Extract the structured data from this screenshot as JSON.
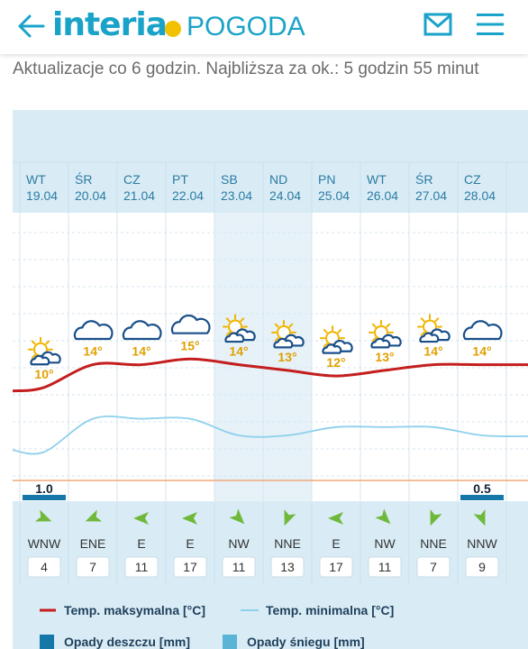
{
  "header": {
    "logo_primary": "interia",
    "logo_secondary": "POGODA"
  },
  "update_text": "Aktualizacje co 6 godzin. Najbliższa za ok.: 5 godzin 55 minut",
  "days": [
    {
      "dow": "WT",
      "date": "19.04",
      "icon": "sun-behind-cloud-icon",
      "max": 10,
      "min": 3,
      "max_label": "10°",
      "rain": 1.0,
      "rain_label": "1.0",
      "wind_dir": "WNW",
      "wind_speed": "4",
      "wind_deg": 292
    },
    {
      "dow": "ŚR",
      "date": "20.04",
      "icon": "cloud-icon",
      "max": 14,
      "min": 7,
      "max_label": "14°",
      "rain": 0,
      "rain_label": "",
      "wind_dir": "ENE",
      "wind_speed": "7",
      "wind_deg": 68
    },
    {
      "dow": "CZ",
      "date": "21.04",
      "icon": "cloud-icon",
      "max": 14,
      "min": 7,
      "max_label": "14°",
      "rain": 0,
      "rain_label": "",
      "wind_dir": "E",
      "wind_speed": "11",
      "wind_deg": 90
    },
    {
      "dow": "PT",
      "date": "22.04",
      "icon": "cloud-icon",
      "max": 15,
      "min": 7,
      "max_label": "15°",
      "rain": 0,
      "rain_label": "",
      "wind_dir": "E",
      "wind_speed": "17",
      "wind_deg": 90
    },
    {
      "dow": "SB",
      "date": "23.04",
      "icon": "sun-behind-cloud-icon",
      "max": 14,
      "min": 5,
      "max_label": "14°",
      "rain": 0,
      "rain_label": "",
      "wind_dir": "NW",
      "wind_speed": "11",
      "wind_deg": 315
    },
    {
      "dow": "ND",
      "date": "24.04",
      "icon": "sun-behind-cloud-icon",
      "max": 13,
      "min": 5,
      "max_label": "13°",
      "rain": 0,
      "rain_label": "",
      "wind_dir": "NNE",
      "wind_speed": "13",
      "wind_deg": 22
    },
    {
      "dow": "PN",
      "date": "25.04",
      "icon": "sun-behind-cloud-icon",
      "max": 12,
      "min": 6,
      "max_label": "12°",
      "rain": 0,
      "rain_label": "",
      "wind_dir": "E",
      "wind_speed": "17",
      "wind_deg": 90
    },
    {
      "dow": "WT",
      "date": "26.04",
      "icon": "sun-behind-cloud-icon",
      "max": 13,
      "min": 6,
      "max_label": "13°",
      "rain": 0,
      "rain_label": "",
      "wind_dir": "NW",
      "wind_speed": "11",
      "wind_deg": 315
    },
    {
      "dow": "ŚR",
      "date": "27.04",
      "icon": "sun-behind-cloud-icon",
      "max": 14,
      "min": 6,
      "max_label": "14°",
      "rain": 0,
      "rain_label": "",
      "wind_dir": "NNE",
      "wind_speed": "7",
      "wind_deg": 22
    },
    {
      "dow": "CZ",
      "date": "28.04",
      "icon": "cloud-icon",
      "max": 14,
      "min": 5,
      "max_label": "14°",
      "rain": 0.5,
      "rain_label": "0.5",
      "wind_dir": "NNW",
      "wind_speed": "9",
      "wind_deg": 338
    }
  ],
  "weekend_columns": [
    4,
    5
  ],
  "legend": {
    "max_label": "Temp. maksymalna [°C]",
    "min_label": "Temp. minimalna [°C]",
    "rain_label": "Opady deszczu [mm]",
    "snow_label": "Opady śniegu [mm]"
  },
  "colors": {
    "brand": "#1aa3c8",
    "logo_dot": "#f2c200",
    "panel_bg": "#d9ecf6",
    "grid_bg": "#ffffff",
    "weekend_bg": "#e6f1f8",
    "max_line": "#c41e1e",
    "min_line": "#8dd0ec",
    "rain_bar": "#1678a8",
    "snow_bar": "#5ab4d6",
    "temp_label": "#e0a000",
    "day_text": "#2c7ba3",
    "wind_arrow": "#6fb83a",
    "baseline": "#f0a878"
  }
}
